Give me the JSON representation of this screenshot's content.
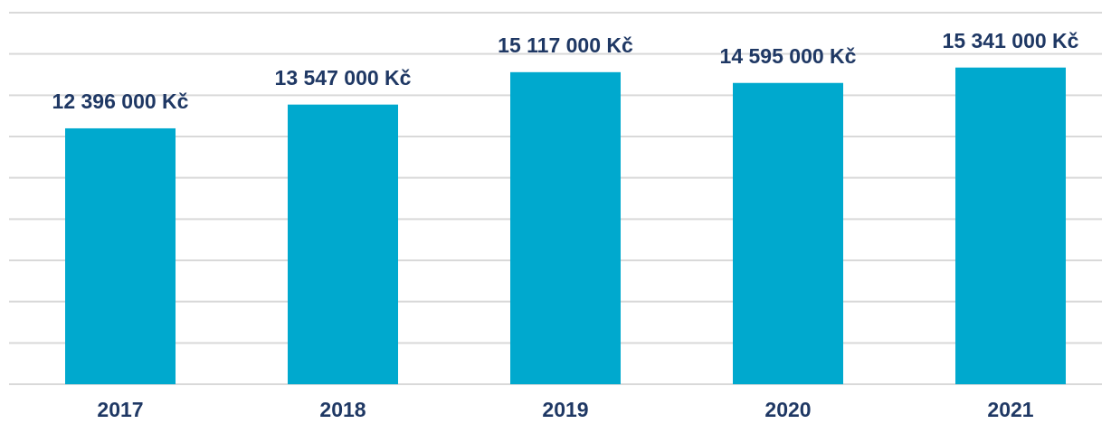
{
  "chart_data": {
    "type": "bar",
    "categories": [
      "2017",
      "2018",
      "2019",
      "2020",
      "2021"
    ],
    "values": [
      12396000,
      13547000,
      15117000,
      14595000,
      15341000
    ],
    "value_labels": [
      "12 396 000 Kč",
      "13 547 000 Kč",
      "15 117 000 Kč",
      "14 595 000 Kč",
      "15 341 000 Kč"
    ],
    "color": "#00a9ce",
    "ylim": [
      0,
      18000000
    ],
    "yticks": [
      0,
      2000000,
      4000000,
      6000000,
      8000000,
      10000000,
      12000000,
      14000000,
      16000000,
      18000000
    ],
    "grid": true
  }
}
